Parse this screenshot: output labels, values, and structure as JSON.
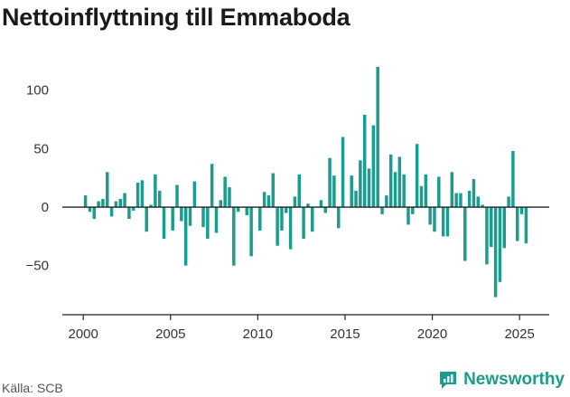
{
  "header": {
    "title": "Nettoinflyttning till Emmaboda"
  },
  "footer": {
    "source": "Källa: SCB",
    "brand": "Newsworthy",
    "brand_icon": "newsworthy-logo-icon"
  },
  "colors": {
    "bar": "#1a9c8e",
    "axis": "#222222",
    "brand": "#1a9c8e"
  },
  "chart_data": {
    "type": "bar",
    "title": "",
    "xlabel": "",
    "ylabel": "",
    "xlim": [
      1998.8,
      2026.7
    ],
    "ylim": [
      -92,
      123
    ],
    "x_ticks": [
      2000,
      2005,
      2010,
      2015,
      2020,
      2025
    ],
    "y_ticks": [
      -50,
      0,
      50,
      100
    ],
    "grid": false,
    "series": [
      {
        "values": [
          [
            2000.125,
            10
          ],
          [
            2000.375,
            -4
          ],
          [
            2000.625,
            -10
          ],
          [
            2000.875,
            5
          ],
          [
            2001.125,
            7
          ],
          [
            2001.375,
            30
          ],
          [
            2001.625,
            -8
          ],
          [
            2001.875,
            5
          ],
          [
            2002.125,
            7
          ],
          [
            2002.375,
            12
          ],
          [
            2002.625,
            -10
          ],
          [
            2002.875,
            -3
          ],
          [
            2003.125,
            21
          ],
          [
            2003.375,
            23
          ],
          [
            2003.625,
            -21
          ],
          [
            2003.875,
            2
          ],
          [
            2004.125,
            28
          ],
          [
            2004.375,
            14
          ],
          [
            2004.625,
            -27
          ],
          [
            2004.875,
            0
          ],
          [
            2005.125,
            -20
          ],
          [
            2005.375,
            19
          ],
          [
            2005.625,
            -12
          ],
          [
            2005.875,
            -50
          ],
          [
            2006.125,
            -16
          ],
          [
            2006.375,
            22
          ],
          [
            2006.625,
            0
          ],
          [
            2006.875,
            -17
          ],
          [
            2007.125,
            -27
          ],
          [
            2007.375,
            37
          ],
          [
            2007.625,
            -22
          ],
          [
            2007.875,
            6
          ],
          [
            2008.125,
            26
          ],
          [
            2008.375,
            17
          ],
          [
            2008.625,
            -50
          ],
          [
            2008.875,
            -4
          ],
          [
            2009.125,
            0
          ],
          [
            2009.375,
            -7
          ],
          [
            2009.625,
            -42
          ],
          [
            2009.875,
            0
          ],
          [
            2010.125,
            -20
          ],
          [
            2010.375,
            13
          ],
          [
            2010.625,
            10
          ],
          [
            2010.875,
            29
          ],
          [
            2011.125,
            -33
          ],
          [
            2011.375,
            -20
          ],
          [
            2011.625,
            -5
          ],
          [
            2011.875,
            -36
          ],
          [
            2012.125,
            9
          ],
          [
            2012.375,
            28
          ],
          [
            2012.625,
            -27
          ],
          [
            2012.875,
            3
          ],
          [
            2013.125,
            -21
          ],
          [
            2013.375,
            0
          ],
          [
            2013.625,
            6
          ],
          [
            2013.875,
            -5
          ],
          [
            2014.125,
            42
          ],
          [
            2014.375,
            27
          ],
          [
            2014.625,
            -18
          ],
          [
            2014.875,
            60
          ],
          [
            2015.125,
            0
          ],
          [
            2015.375,
            27
          ],
          [
            2015.625,
            14
          ],
          [
            2015.875,
            40
          ],
          [
            2016.125,
            79
          ],
          [
            2016.375,
            33
          ],
          [
            2016.625,
            70
          ],
          [
            2016.875,
            120
          ],
          [
            2017.125,
            -6
          ],
          [
            2017.375,
            10
          ],
          [
            2017.625,
            45
          ],
          [
            2017.875,
            30
          ],
          [
            2018.125,
            43
          ],
          [
            2018.375,
            28
          ],
          [
            2018.625,
            -15
          ],
          [
            2018.875,
            -6
          ],
          [
            2019.125,
            54
          ],
          [
            2019.375,
            18
          ],
          [
            2019.625,
            28
          ],
          [
            2019.875,
            -15
          ],
          [
            2020.125,
            -21
          ],
          [
            2020.375,
            26
          ],
          [
            2020.625,
            -25
          ],
          [
            2020.875,
            -25
          ],
          [
            2021.125,
            30
          ],
          [
            2021.375,
            12
          ],
          [
            2021.625,
            12
          ],
          [
            2021.875,
            -46
          ],
          [
            2022.125,
            14
          ],
          [
            2022.375,
            24
          ],
          [
            2022.625,
            9
          ],
          [
            2022.875,
            2
          ],
          [
            2023.125,
            -49
          ],
          [
            2023.375,
            -34
          ],
          [
            2023.625,
            -77
          ],
          [
            2023.875,
            -64
          ],
          [
            2024.125,
            -35
          ],
          [
            2024.375,
            9
          ],
          [
            2024.625,
            48
          ],
          [
            2024.875,
            -29
          ],
          [
            2025.125,
            -6
          ],
          [
            2025.375,
            -31
          ]
        ]
      }
    ]
  }
}
